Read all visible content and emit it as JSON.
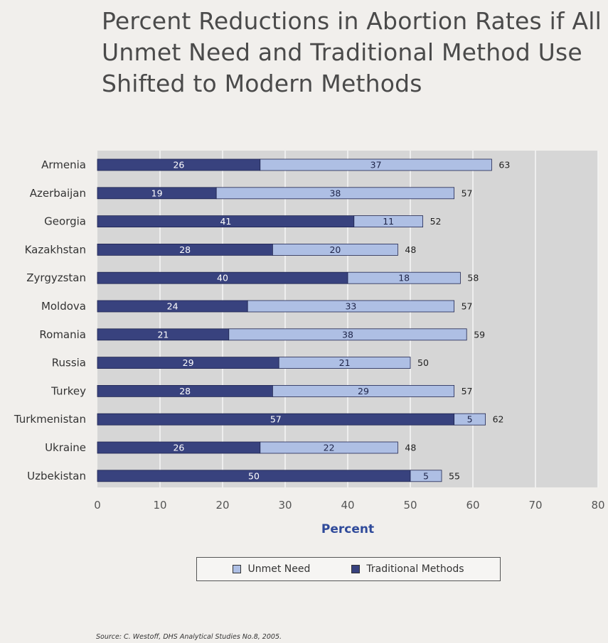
{
  "title_lines": [
    "Percent Reductions in Abortion Rates if All",
    "Unmet Need and Traditional Method Use",
    "Shifted to Modern Methods"
  ],
  "source": "Source: C. Westoff, DHS Analytical Studies No.8, 2005.",
  "colors": {
    "traditional": "#38427e",
    "unmet": "#aebfe4",
    "plot_bg": "#d6d6d6",
    "page_bg": "#f1efec",
    "axis_label": "#2f4a9a"
  },
  "chart_data": {
    "type": "bar",
    "orientation": "horizontal",
    "stacked": true,
    "title": "Percent Reductions in Abortion Rates if All Unmet Need and Traditional Method Use Shifted to Modern Methods",
    "xlabel": "Percent",
    "ylabel": "",
    "xlim": [
      0,
      80
    ],
    "xticks": [
      0,
      10,
      20,
      30,
      40,
      50,
      60,
      70,
      80
    ],
    "categories": [
      "Armenia",
      "Azerbaijan",
      "Georgia",
      "Kazakhstan",
      "Zyrgyzstan",
      "Moldova",
      "Romania",
      "Russia",
      "Turkey",
      "Turkmenistan",
      "Ukraine",
      "Uzbekistan"
    ],
    "series": [
      {
        "name": "Traditional Methods",
        "values": [
          26,
          19,
          41,
          28,
          40,
          24,
          21,
          29,
          28,
          57,
          26,
          50
        ]
      },
      {
        "name": "Unmet Need",
        "values": [
          37,
          38,
          11,
          20,
          18,
          33,
          38,
          21,
          29,
          5,
          22,
          5
        ]
      }
    ],
    "totals": [
      63,
      57,
      52,
      48,
      58,
      57,
      59,
      50,
      57,
      62,
      48,
      55
    ],
    "legend": [
      "Unmet Need",
      "Traditional Methods"
    ],
    "legend_position": "bottom",
    "grid": true
  }
}
